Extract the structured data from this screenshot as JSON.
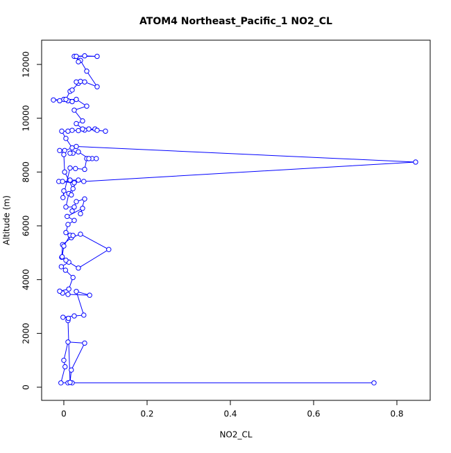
{
  "chart_data": {
    "type": "line",
    "title": "ATOM4 Northeast_Pacific_1 NO2_CL",
    "x_label": "NO2_CL",
    "y_label": "Altitude (m)",
    "color": "#0000ff",
    "markers": "circle",
    "xlim": [
      -0.0533,
      0.88
    ],
    "ylim": [
      -489,
      12902
    ],
    "xticks": [
      0.0,
      0.2,
      0.4,
      0.6,
      0.8
    ],
    "yticks": [
      0,
      2000,
      4000,
      6000,
      8000,
      10000,
      12000
    ],
    "x": [
      0.745,
      0.02,
      0.01,
      -0.007,
      0.003,
      0.0,
      0.01,
      0.05,
      0.018,
      0.015,
      0.01,
      0.011,
      -0.002,
      0.025,
      0.048,
      0.03,
      0.062,
      0.01,
      -0.003,
      -0.01,
      0.012,
      0.022,
      0.004,
      -0.006,
      0.012,
      0.035,
      0.108,
      0.04,
      0.018,
      -0.003,
      -0.005,
      0.005,
      -0.004,
      0.0,
      0.015,
      0.022,
      0.005,
      0.01,
      0.025,
      0.008,
      0.045,
      0.04,
      0.05,
      0.03,
      0.02,
      0.025,
      0.005,
      0.012,
      0.035,
      0.015,
      0.025,
      -0.012,
      -0.003,
      0.048,
      0.845,
      0.03,
      0.002,
      -0.01,
      0.0,
      0.002,
      0.022,
      0.018,
      0.0,
      -0.002,
      0.015,
      0.028,
      0.05,
      0.055,
      0.068,
      0.078,
      0.06,
      0.035,
      0.022,
      0.015,
      0.02,
      0.005,
      -0.005,
      0.01,
      0.02,
      0.035,
      0.05,
      0.06,
      0.075,
      0.08,
      0.1,
      0.045,
      0.03,
      0.045,
      0.025,
      0.055,
      0.03,
      0.0,
      -0.01,
      0.01,
      0.02,
      -0.025,
      0.005,
      0.015,
      0.02,
      0.035,
      0.03,
      0.04,
      0.05,
      0.08,
      0.055,
      0.04,
      0.025,
      0.05,
      0.08,
      0.03,
      0.035
    ],
    "values": [
      160,
      160,
      160,
      160,
      760,
      1000,
      1680,
      1640,
      640,
      180,
      2480,
      2560,
      2600,
      2650,
      2680,
      3560,
      3420,
      3450,
      3500,
      3570,
      3650,
      4080,
      4350,
      4480,
      4650,
      4430,
      5120,
      5690,
      5560,
      5300,
      4830,
      4720,
      4850,
      5250,
      5650,
      5640,
      5750,
      6050,
      6200,
      6350,
      6650,
      6450,
      7000,
      6900,
      6550,
      6700,
      6700,
      7200,
      7700,
      7700,
      7600,
      7650,
      7650,
      7650,
      8370,
      8950,
      8800,
      8800,
      8650,
      8000,
      7380,
      7150,
      7300,
      7050,
      8150,
      8130,
      8100,
      8500,
      8500,
      8500,
      8500,
      8750,
      8700,
      8700,
      8900,
      9250,
      9520,
      9520,
      9550,
      9540,
      9560,
      9600,
      9600,
      9550,
      9520,
      9600,
      9800,
      9900,
      10300,
      10450,
      10700,
      10700,
      10650,
      10650,
      10620,
      10680,
      10700,
      11000,
      11050,
      11300,
      11350,
      11370,
      11350,
      11170,
      11750,
      12150,
      12300,
      12320,
      12300,
      12300,
      12100
    ]
  }
}
